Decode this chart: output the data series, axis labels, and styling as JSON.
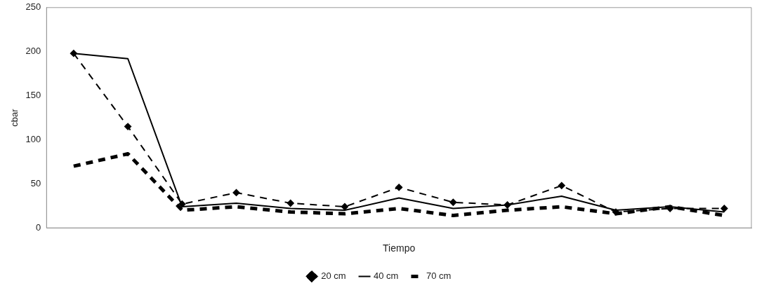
{
  "chart_data": {
    "type": "line",
    "xlabel": "Tiempo",
    "ylabel": "cbar",
    "categories": [
      null,
      null,
      null,
      null,
      null,
      null,
      null,
      null,
      null,
      null,
      null,
      null,
      null
    ],
    "series": [
      {
        "name": "20 cm",
        "color": "#000000",
        "line_style": "dashed",
        "marker": "diamond",
        "values": [
          198,
          115,
          27,
          40,
          28,
          24,
          46,
          29,
          26,
          48,
          18,
          22,
          22
        ]
      },
      {
        "name": "40 cm",
        "color": "#000000",
        "line_style": "solid",
        "marker": "none",
        "values": [
          198,
          192,
          24,
          28,
          22,
          20,
          34,
          22,
          26,
          36,
          20,
          24,
          18
        ]
      },
      {
        "name": "70 cm",
        "color": "#000000",
        "line_style": "dashed",
        "marker": "none",
        "values": [
          70,
          84,
          20,
          24,
          18,
          16,
          22,
          14,
          20,
          24,
          16,
          24,
          14
        ]
      }
    ],
    "ylim": [
      0,
      250
    ],
    "yticks": [
      0,
      50,
      100,
      150,
      200,
      250
    ],
    "grid": false,
    "legend": "bottom",
    "tick_labels": "y"
  }
}
